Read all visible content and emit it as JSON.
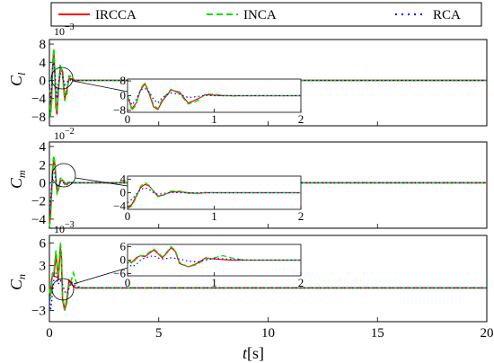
{
  "colors": {
    "IRCCA": "#ff0000",
    "INCA": "#00dd00",
    "RCA": "#0000ff"
  },
  "legend": [
    {
      "label": "IRCCA",
      "color": "#ff0000",
      "dash": "solid"
    },
    {
      "label": "INCA",
      "color": "#00dd00",
      "dash": "dashed"
    },
    {
      "label": "RCA",
      "color": "#0000ff",
      "dash": "dotted"
    }
  ],
  "xaxis": {
    "label_italic": "t",
    "label_unit": "[s]",
    "ticks": [
      "0",
      "5",
      "10",
      "15",
      "20"
    ]
  },
  "chart_data": [
    {
      "type": "line",
      "ylabel_main": "C",
      "ylabel_sub": "l",
      "scale_base": "10",
      "scale_exp": "−3",
      "xlim": [
        0,
        20
      ],
      "ylim": [
        -10,
        9
      ],
      "yticks": [
        "8",
        "4",
        "0",
        "−4",
        "−8"
      ],
      "inset": {
        "xlim": [
          0,
          2
        ],
        "ylim": [
          -9,
          9
        ],
        "yticks": [
          "8",
          "0",
          "−8"
        ],
        "xticks": [
          "0",
          "1",
          "2"
        ]
      },
      "series": [
        {
          "name": "IRCCA",
          "x": [
            0,
            0.05,
            0.1,
            0.15,
            0.2,
            0.25,
            0.3,
            0.35,
            0.4,
            0.5,
            0.6,
            0.7,
            0.8,
            0.9,
            1.0,
            1.1,
            1.2,
            1.4,
            1.6,
            2.0,
            20
          ],
          "y": [
            0,
            -7,
            -4,
            3,
            6.5,
            1,
            -6,
            -7.5,
            -3,
            3,
            2,
            -4,
            -2,
            0.5,
            0.3,
            0,
            0,
            0,
            0,
            0,
            0
          ]
        },
        {
          "name": "INCA",
          "x": [
            0,
            0.05,
            0.1,
            0.15,
            0.2,
            0.25,
            0.3,
            0.35,
            0.4,
            0.5,
            0.6,
            0.7,
            0.8,
            0.9,
            1.0,
            1.1,
            1.2,
            1.4,
            1.6,
            2.0,
            20
          ],
          "y": [
            0,
            -8,
            -5,
            4,
            7,
            2,
            -5,
            -7,
            -2,
            3.5,
            1,
            -4.5,
            -3,
            1,
            0.8,
            0.3,
            -0.2,
            0,
            0,
            0,
            0
          ]
        },
        {
          "name": "RCA",
          "x": [
            0,
            0.05,
            0.1,
            0.15,
            0.2,
            0.25,
            0.3,
            0.35,
            0.4,
            0.5,
            0.6,
            0.7,
            0.8,
            0.9,
            1.0,
            1.2,
            1.4,
            1.6,
            2.0,
            20
          ],
          "y": [
            0,
            -5,
            -2,
            3,
            4,
            2,
            -2,
            -4,
            -1,
            1.5,
            0.8,
            -1,
            -0.5,
            0.2,
            0,
            0,
            0,
            0,
            0,
            0
          ]
        }
      ]
    },
    {
      "type": "line",
      "ylabel_main": "C",
      "ylabel_sub": "m",
      "scale_base": "10",
      "scale_exp": "−2",
      "xlim": [
        0,
        20
      ],
      "ylim": [
        -5,
        4.5
      ],
      "yticks": [
        "4",
        "2",
        "0",
        "−2",
        "−4"
      ],
      "inset": {
        "xlim": [
          0,
          2
        ],
        "ylim": [
          -5,
          5
        ],
        "yticks": [
          "4",
          "0",
          "−4"
        ],
        "xticks": [
          "0",
          "1",
          "2"
        ]
      },
      "series": [
        {
          "name": "IRCCA",
          "x": [
            0,
            0.05,
            0.1,
            0.15,
            0.2,
            0.25,
            0.3,
            0.35,
            0.4,
            0.5,
            0.6,
            0.7,
            0.8,
            0.9,
            1.0,
            1.2,
            1.4,
            1.6,
            2.0,
            20
          ],
          "y": [
            -4.5,
            -3.5,
            -1,
            1.5,
            2.5,
            2,
            0.5,
            -1,
            -0.8,
            0.2,
            0.3,
            0,
            -0.2,
            0,
            0,
            0,
            0,
            0,
            0,
            0
          ]
        },
        {
          "name": "INCA",
          "x": [
            0,
            0.05,
            0.1,
            0.15,
            0.2,
            0.25,
            0.3,
            0.35,
            0.4,
            0.5,
            0.6,
            0.7,
            0.8,
            0.9,
            1.0,
            1.2,
            1.4,
            1.6,
            2.0,
            20
          ],
          "y": [
            -4.8,
            -4,
            -1.5,
            2,
            3,
            2.2,
            0.3,
            -1.2,
            -1,
            0.5,
            0.5,
            -0.2,
            -0.3,
            0.1,
            0,
            0,
            0,
            0,
            0,
            0
          ]
        },
        {
          "name": "RCA",
          "x": [
            0,
            0.05,
            0.1,
            0.15,
            0.2,
            0.25,
            0.3,
            0.35,
            0.4,
            0.5,
            0.6,
            0.7,
            0.8,
            1.0,
            1.2,
            1.4,
            1.6,
            2.0,
            20
          ],
          "y": [
            -3,
            -2,
            -0.5,
            1,
            1.5,
            1,
            0,
            -0.5,
            -0.3,
            0.1,
            0,
            0,
            0,
            0,
            0,
            0,
            0,
            0,
            0
          ]
        }
      ]
    },
    {
      "type": "line",
      "ylabel_main": "C",
      "ylabel_sub": "n",
      "scale_base": "10",
      "scale_exp": "−3",
      "xlim": [
        0,
        20
      ],
      "ylim": [
        -4.5,
        7
      ],
      "yticks": [
        "6",
        "3",
        "0",
        "−3"
      ],
      "inset": {
        "xlim": [
          0,
          2
        ],
        "ylim": [
          -7,
          7
        ],
        "yticks": [
          "6",
          "0",
          "−6"
        ],
        "xticks": [
          "0",
          "1",
          "2"
        ]
      },
      "series": [
        {
          "name": "IRCCA",
          "x": [
            0,
            0.05,
            0.1,
            0.15,
            0.2,
            0.25,
            0.3,
            0.35,
            0.4,
            0.45,
            0.5,
            0.55,
            0.6,
            0.7,
            0.8,
            0.9,
            1.0,
            1.2,
            1.4,
            1.6,
            2.0,
            20
          ],
          "y": [
            0,
            -1,
            1,
            2,
            1.5,
            3,
            4.5,
            3,
            1,
            3,
            5.5,
            4,
            -1.5,
            -3,
            -1.5,
            1,
            0.5,
            0,
            0,
            0,
            0,
            0
          ]
        },
        {
          "name": "INCA",
          "x": [
            0,
            0.05,
            0.1,
            0.15,
            0.2,
            0.25,
            0.3,
            0.35,
            0.4,
            0.45,
            0.5,
            0.55,
            0.6,
            0.7,
            0.8,
            0.9,
            1.0,
            1.1,
            1.2,
            1.3,
            1.4,
            1.6,
            2.0,
            20
          ],
          "y": [
            0,
            -1.5,
            0.5,
            2,
            2,
            3.5,
            5,
            3.5,
            1.5,
            3.5,
            6,
            4.5,
            -1,
            -3,
            -2,
            0.5,
            1,
            2,
            1,
            0.3,
            0,
            0,
            0,
            0
          ]
        },
        {
          "name": "RCA",
          "x": [
            0,
            0.05,
            0.1,
            0.15,
            0.2,
            0.25,
            0.3,
            0.35,
            0.4,
            0.5,
            0.6,
            0.7,
            0.8,
            0.9,
            1.0,
            1.2,
            1.4,
            1.6,
            2.0,
            20
          ],
          "y": [
            -1,
            -3,
            -2,
            0,
            1,
            1.5,
            2,
            1,
            0.5,
            1,
            0.5,
            -0.5,
            -0.8,
            0,
            0.8,
            0.3,
            0,
            0,
            0,
            0
          ]
        }
      ]
    }
  ]
}
